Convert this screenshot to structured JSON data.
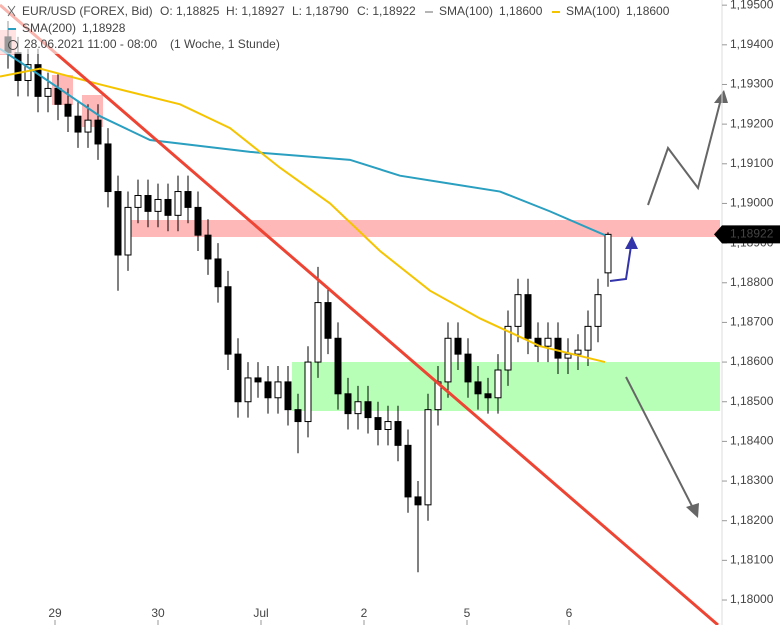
{
  "chart_data": {
    "type": "candlestick",
    "header": {
      "symbol": "EUR/USD (FOREX, Bid)",
      "open": "O: 1,18825",
      "high": "H: 1,18927",
      "low": "L: 1,18790",
      "close": "C: 1,18922",
      "legend": [
        {
          "name": "SMA(100)",
          "value": "1,18600",
          "color": "#b5b5b5"
        },
        {
          "name": "SMA(100)",
          "value": "1,18600",
          "color": "#f5c400"
        },
        {
          "name": "SMA(200)",
          "value": "1,18928",
          "color": "#2a9fc0"
        }
      ],
      "date": "28.06.2021 11:00 - 08:00",
      "period": "(1 Woche, 1 Stunde)"
    },
    "x": [
      0,
      1,
      2,
      3,
      4,
      5,
      6,
      7,
      8,
      9,
      10,
      11,
      12,
      13,
      14,
      15,
      16,
      17,
      18,
      19,
      20,
      21,
      22,
      23,
      24,
      25,
      26,
      27,
      28,
      29,
      30,
      31,
      32,
      33,
      34,
      35,
      36,
      37,
      38,
      39,
      40,
      41,
      42,
      43,
      44,
      45,
      46,
      47,
      48,
      49,
      50,
      51,
      52,
      53,
      54,
      55,
      56,
      57,
      58,
      59,
      60
    ],
    "open": [
      1.1942,
      1.1938,
      1.1931,
      1.1935,
      1.1927,
      1.1929,
      1.1925,
      1.1922,
      1.1918,
      1.1921,
      1.1915,
      1.1903,
      1.1887,
      1.1899,
      1.1902,
      1.1898,
      1.1901,
      1.1897,
      1.1903,
      1.1899,
      1.1892,
      1.1886,
      1.1879,
      1.1862,
      1.185,
      1.1856,
      1.1855,
      1.1851,
      1.1855,
      1.1848,
      1.1845,
      1.186,
      1.1875,
      1.1866,
      1.1852,
      1.1847,
      1.185,
      1.1846,
      1.1843,
      1.1845,
      1.1839,
      1.1826,
      1.1824,
      1.1848,
      1.1855,
      1.1866,
      1.1862,
      1.1855,
      1.1852,
      1.1851,
      1.1858,
      1.1869,
      1.1877,
      1.1866,
      1.1864,
      1.1866,
      1.1861,
      1.1862,
      1.1863,
      1.1869,
      1.18825
    ],
    "high": [
      1.1946,
      1.1942,
      1.1939,
      1.1939,
      1.1933,
      1.1933,
      1.1929,
      1.1926,
      1.1925,
      1.1925,
      1.1919,
      1.1907,
      1.1903,
      1.1906,
      1.1906,
      1.1905,
      1.1905,
      1.1907,
      1.1907,
      1.1903,
      1.1896,
      1.189,
      1.1883,
      1.1866,
      1.186,
      1.186,
      1.1859,
      1.1859,
      1.1859,
      1.1852,
      1.1864,
      1.1884,
      1.1879,
      1.187,
      1.1856,
      1.1854,
      1.1854,
      1.185,
      1.1849,
      1.1849,
      1.1843,
      1.183,
      1.1852,
      1.1859,
      1.187,
      1.187,
      1.1866,
      1.1859,
      1.1856,
      1.1862,
      1.1873,
      1.1881,
      1.1881,
      1.187,
      1.187,
      1.187,
      1.1866,
      1.1867,
      1.1873,
      1.1881,
      1.18927
    ],
    "low": [
      1.1934,
      1.1927,
      1.1927,
      1.1923,
      1.1923,
      1.1921,
      1.1918,
      1.1914,
      1.1914,
      1.1911,
      1.1899,
      1.1878,
      1.1883,
      1.1895,
      1.1894,
      1.1894,
      1.1893,
      1.1893,
      1.1895,
      1.1888,
      1.1882,
      1.1875,
      1.1858,
      1.1846,
      1.1846,
      1.1851,
      1.1847,
      1.1847,
      1.1844,
      1.1837,
      1.1841,
      1.1856,
      1.1862,
      1.1848,
      1.1843,
      1.1843,
      1.1842,
      1.1839,
      1.1839,
      1.1835,
      1.1822,
      1.1807,
      1.182,
      1.1844,
      1.1851,
      1.1858,
      1.1851,
      1.1848,
      1.1847,
      1.1847,
      1.1854,
      1.1865,
      1.1862,
      1.186,
      1.186,
      1.1857,
      1.1857,
      1.1858,
      1.1859,
      1.1865,
      1.1879
    ],
    "close": [
      1.1938,
      1.1931,
      1.1935,
      1.1927,
      1.1929,
      1.1925,
      1.1922,
      1.1918,
      1.1921,
      1.1915,
      1.1903,
      1.1887,
      1.1899,
      1.1902,
      1.1898,
      1.1901,
      1.1897,
      1.1903,
      1.1899,
      1.1892,
      1.1886,
      1.1879,
      1.1862,
      1.185,
      1.1856,
      1.1855,
      1.1851,
      1.1855,
      1.1848,
      1.1845,
      1.186,
      1.1875,
      1.1866,
      1.1852,
      1.1847,
      1.185,
      1.1846,
      1.1843,
      1.1845,
      1.1839,
      1.1826,
      1.1824,
      1.1848,
      1.1855,
      1.1866,
      1.1862,
      1.1855,
      1.1852,
      1.1851,
      1.1858,
      1.1869,
      1.1877,
      1.1866,
      1.1864,
      1.1866,
      1.1861,
      1.1862,
      1.1863,
      1.1869,
      1.1877,
      1.18922
    ],
    "series": [
      {
        "name": "SMA(200)",
        "color": "#2a9fc0",
        "x": [
          -0.8,
          2.2,
          9.2,
          14.2,
          24.2,
          29.2,
          34.2,
          39.2,
          44.2,
          49.2,
          54.2,
          59.7
        ],
        "values": [
          1.1939,
          1.1934,
          1.1922,
          1.1916,
          1.1913,
          1.1912,
          1.1911,
          1.1907,
          1.1905,
          1.1903,
          1.1898,
          1.1892
        ]
      },
      {
        "name": "SMA(100)",
        "color": "#f5c400",
        "x": [
          -0.8,
          3.2,
          9.2,
          17.2,
          22.2,
          27.2,
          32.2,
          37.2,
          42.2,
          47.2,
          53.2,
          59.7
        ],
        "values": [
          1.1932,
          1.1934,
          1.193,
          1.1925,
          1.1919,
          1.1909,
          1.19,
          1.1888,
          1.1878,
          1.1871,
          1.1864,
          1.186
        ]
      }
    ],
    "last_price": {
      "value": 1.18922,
      "label": "1,18922"
    },
    "xlim": [
      -0.8,
      71.2
    ],
    "xticks": [
      {
        "value": 4.7,
        "label": "29"
      },
      {
        "value": 15.0,
        "label": "30"
      },
      {
        "value": 25.3,
        "label": "Jul"
      },
      {
        "value": 35.6,
        "label": "2"
      },
      {
        "value": 45.9,
        "label": "5"
      },
      {
        "value": 56.1,
        "label": "6"
      }
    ],
    "ylim": [
      1.17937,
      1.19513
    ],
    "yticks": [
      {
        "value": 1.195,
        "label": "1,19500"
      },
      {
        "value": 1.194,
        "label": "1,19400"
      },
      {
        "value": 1.193,
        "label": "1,19300"
      },
      {
        "value": 1.192,
        "label": "1,19200"
      },
      {
        "value": 1.191,
        "label": "1,19100"
      },
      {
        "value": 1.19,
        "label": "1,19000"
      },
      {
        "value": 1.189,
        "label": "1,18900"
      },
      {
        "value": 1.188,
        "label": "1,18800"
      },
      {
        "value": 1.187,
        "label": "1,18700"
      },
      {
        "value": 1.186,
        "label": "1,18600"
      },
      {
        "value": 1.185,
        "label": "1,18500"
      },
      {
        "value": 1.184,
        "label": "1,18400"
      },
      {
        "value": 1.183,
        "label": "1,18300"
      },
      {
        "value": 1.182,
        "label": "1,18200"
      },
      {
        "value": 1.181,
        "label": "1,18100"
      },
      {
        "value": 1.18,
        "label": "1,18000"
      }
    ]
  }
}
